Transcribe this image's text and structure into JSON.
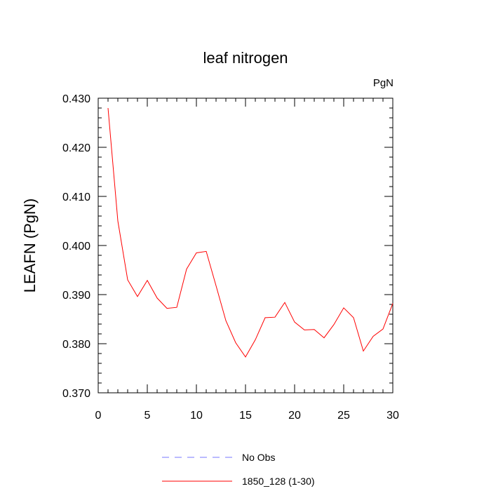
{
  "chart_data": {
    "type": "line",
    "title": "leaf nitrogen",
    "units_label": "PgN",
    "ylabel": "LEAFN  (PgN)",
    "xlabel": "",
    "xlim": [
      0,
      30
    ],
    "ylim": [
      0.37,
      0.43
    ],
    "xticks": [
      0,
      5,
      10,
      15,
      20,
      25,
      30
    ],
    "xtick_labels": [
      "0",
      "5",
      "10",
      "15",
      "20",
      "25",
      "30"
    ],
    "yticks": [
      0.37,
      0.38,
      0.39,
      0.4,
      0.41,
      0.42,
      0.43
    ],
    "ytick_labels": [
      "0.370",
      "0.380",
      "0.390",
      "0.400",
      "0.410",
      "0.420",
      "0.430"
    ],
    "grid": false,
    "legend_position": "bottom",
    "series": [
      {
        "name": "1850_128 (1-30)",
        "color": "#ff0000",
        "dash": "solid",
        "x": [
          1,
          2,
          3,
          4,
          5,
          6,
          7,
          8,
          9,
          10,
          11,
          12,
          13,
          14,
          15,
          16,
          17,
          18,
          19,
          20,
          21,
          22,
          23,
          24,
          25,
          26,
          27,
          28,
          29,
          30
        ],
        "y": [
          0.428,
          0.405,
          0.393,
          0.3896,
          0.3929,
          0.3893,
          0.3872,
          0.3874,
          0.3952,
          0.3985,
          0.3988,
          0.3918,
          0.3847,
          0.3802,
          0.3773,
          0.3808,
          0.3853,
          0.3854,
          0.3884,
          0.3844,
          0.3828,
          0.3829,
          0.3812,
          0.3839,
          0.3873,
          0.3853,
          0.3785,
          0.3815,
          0.383,
          0.3882
        ]
      }
    ],
    "legend": [
      {
        "label": "No Obs",
        "color": "#7777ff",
        "dash": "dashed"
      },
      {
        "label": "1850_128 (1-30)",
        "color": "#ff0000",
        "dash": "solid"
      }
    ]
  }
}
